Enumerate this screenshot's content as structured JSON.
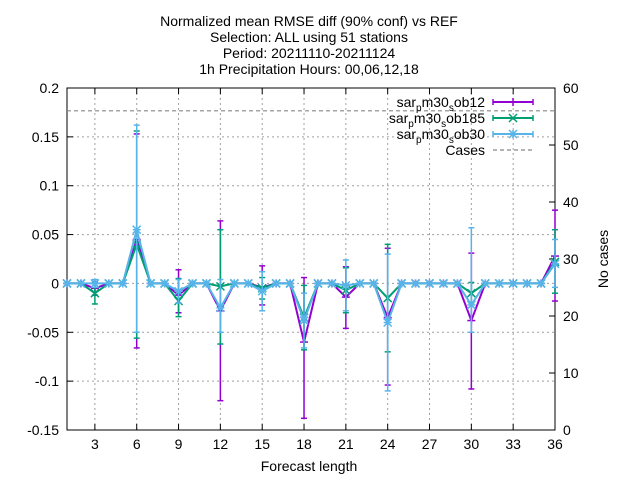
{
  "chart_data": {
    "type": "line",
    "title_lines": [
      "Normalized mean RMSE diff (90% conf) vs REF",
      "Selection: ALL using    51 stations",
      "Period: 20211110-20211124",
      "1h Precipitation   Hours: 00,06,12,18"
    ],
    "xlabel": "Forecast length",
    "ylabel_right": "No cases",
    "xlim": [
      1,
      36
    ],
    "ylim": [
      -0.15,
      0.2
    ],
    "y2lim": [
      0,
      60
    ],
    "xticks": [
      "3",
      "6",
      "9",
      "12",
      "15",
      "18",
      "21",
      "24",
      "27",
      "30",
      "33",
      "36"
    ],
    "yticks": [
      "-0.15",
      "-0.1",
      "-0.05",
      "0",
      "0.05",
      "0.1",
      "0.15",
      "0.2"
    ],
    "y2ticks": [
      "0",
      "10",
      "20",
      "30",
      "40",
      "50",
      "60"
    ],
    "grid": true,
    "legend_position": "top-right",
    "x": [
      1,
      2,
      3,
      4,
      5,
      6,
      7,
      8,
      9,
      10,
      11,
      12,
      13,
      14,
      15,
      16,
      17,
      18,
      19,
      20,
      21,
      22,
      23,
      24,
      25,
      26,
      27,
      28,
      29,
      30,
      31,
      32,
      33,
      34,
      35,
      36
    ],
    "series": [
      {
        "name_parts": [
          "sar",
          "p",
          "m30",
          "s",
          "ob12"
        ],
        "color": "#9400d3",
        "marker": "plus",
        "values": [
          0,
          0,
          -0.005,
          0,
          0,
          0.045,
          0,
          0,
          -0.012,
          0,
          0,
          -0.028,
          0,
          0,
          -0.004,
          0,
          0,
          -0.06,
          0,
          0,
          -0.014,
          0,
          0,
          -0.035,
          0,
          0,
          0,
          0,
          0,
          -0.038,
          0,
          0,
          0,
          0,
          0,
          0.028
        ],
        "err_low": [
          0,
          0,
          -0.012,
          0,
          0,
          -0.066,
          0,
          0,
          -0.03,
          0,
          0,
          -0.12,
          0,
          0,
          -0.022,
          0,
          0,
          -0.138,
          0,
          0,
          -0.046,
          0,
          0,
          -0.104,
          0,
          0,
          0,
          0,
          0,
          -0.108,
          0,
          0,
          0,
          0,
          0,
          -0.018
        ],
        "err_high": [
          0,
          0,
          0.002,
          0,
          0,
          0.153,
          0,
          0,
          0.014,
          0,
          0,
          0.064,
          0,
          0,
          0.018,
          0,
          0,
          0.006,
          0,
          0,
          0.017,
          0,
          0,
          0.036,
          0,
          0,
          0,
          0,
          0,
          0.031,
          0,
          0,
          0,
          0,
          0,
          0.075
        ]
      },
      {
        "name_parts": [
          "sar",
          "p",
          "m30",
          "s",
          "ob185"
        ],
        "color": "#009e73",
        "marker": "cross",
        "values": [
          0,
          0,
          -0.01,
          0,
          0,
          0.04,
          0,
          0,
          -0.018,
          0,
          0,
          -0.003,
          0,
          0,
          -0.005,
          0,
          0,
          -0.035,
          0,
          0,
          -0.007,
          0,
          0,
          -0.015,
          0,
          0,
          0,
          0,
          0,
          -0.01,
          0,
          0,
          0,
          0,
          0,
          0.022
        ],
        "err_low": [
          0,
          0,
          -0.021,
          0,
          0,
          -0.056,
          0,
          0,
          -0.034,
          0,
          0,
          -0.062,
          0,
          0,
          -0.016,
          0,
          0,
          -0.068,
          0,
          0,
          -0.03,
          0,
          0,
          -0.07,
          0,
          0,
          0,
          0,
          0,
          -0.02,
          0,
          0,
          0,
          0,
          0,
          -0.01
        ],
        "err_high": [
          0,
          0,
          0.001,
          0,
          0,
          0.156,
          0,
          0,
          0.005,
          0,
          0,
          0.055,
          0,
          0,
          0.006,
          0,
          0,
          -0.002,
          0,
          0,
          0.016,
          0,
          0,
          0.04,
          0,
          0,
          0,
          0,
          0,
          0.001,
          0,
          0,
          0,
          0,
          0,
          0.055
        ]
      },
      {
        "name_parts": [
          "sar",
          "p",
          "m30",
          "s",
          "ob30"
        ],
        "color": "#56b4e9",
        "marker": "star",
        "values": [
          0,
          0,
          0,
          0,
          0,
          0.055,
          0,
          0,
          -0.008,
          0,
          0,
          -0.025,
          0,
          0,
          -0.008,
          0,
          0,
          -0.038,
          0,
          0,
          -0.002,
          0,
          0,
          -0.04,
          0,
          0,
          0,
          0,
          0,
          -0.022,
          0,
          0,
          0,
          0,
          0,
          0.02
        ],
        "err_low": [
          0,
          0,
          -0.004,
          0,
          0,
          -0.05,
          0,
          0,
          -0.02,
          0,
          0,
          -0.05,
          0,
          0,
          -0.028,
          0,
          0,
          -0.066,
          0,
          0,
          -0.028,
          0,
          0,
          -0.11,
          0,
          0,
          0,
          0,
          0,
          -0.05,
          0,
          0,
          0,
          0,
          0,
          -0.004
        ],
        "err_high": [
          0,
          0,
          0.004,
          0,
          0,
          0.162,
          0,
          0,
          0.004,
          0,
          0,
          0.004,
          0,
          0,
          0.012,
          0,
          0,
          -0.01,
          0,
          0,
          0.024,
          0,
          0,
          0.03,
          0,
          0,
          0,
          0,
          0,
          0.057,
          0,
          0,
          0,
          0,
          0,
          0.045
        ]
      },
      {
        "name_parts": [
          "Cases"
        ],
        "color": "#888888",
        "dashed": true,
        "axis": "y2",
        "constant": 56
      }
    ]
  }
}
